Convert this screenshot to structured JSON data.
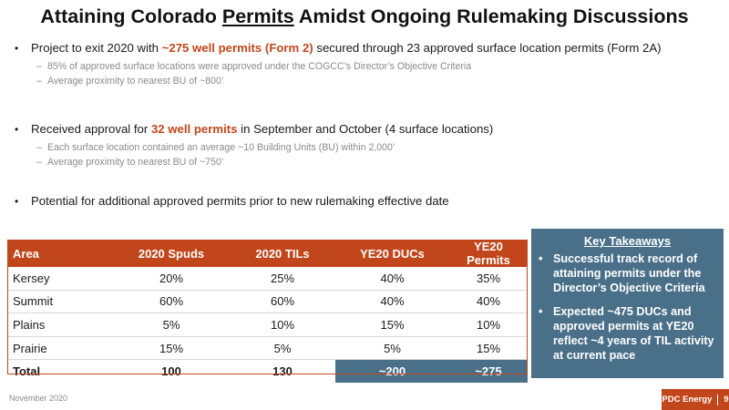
{
  "title": {
    "part1": "Attaining Colorado ",
    "underlined": "Permits",
    "part2": " Amidst Ongoing Rulemaking Discussions"
  },
  "bullets": [
    {
      "pre": "Project to exit 2020 with ",
      "highlight": "~275 well permits (Form 2)",
      "post": " secured through 23 approved surface location permits (Form 2A)",
      "subs": [
        "85% of approved surface locations were approved under the COGCC’s Director’s Objective Criteria",
        "Average proximity to nearest BU of ~800’"
      ]
    },
    {
      "pre": "Received approval for ",
      "highlight": "32 well permits",
      "post": " in September and October (4 surface locations)",
      "subs": [
        "Each surface location contained an average ~10 Building Units (BU) within 2,000’",
        "Average proximity to nearest BU of ~750’"
      ]
    },
    {
      "pre": "Potential for additional approved permits prior to new rulemaking effective date",
      "highlight": "",
      "post": "",
      "subs": []
    }
  ],
  "table": {
    "headers": [
      "Area",
      "2020 Spuds",
      "2020 TILs",
      "YE20 DUCs",
      "YE20 Permits"
    ],
    "rows": [
      [
        "Kersey",
        "20%",
        "25%",
        "40%",
        "35%"
      ],
      [
        "Summit",
        "60%",
        "60%",
        "40%",
        "40%"
      ],
      [
        "Plains",
        "5%",
        "10%",
        "15%",
        "10%"
      ],
      [
        "Prairie",
        "15%",
        "5%",
        "5%",
        "15%"
      ],
      [
        "Total",
        "100",
        "130",
        "~200",
        "~275"
      ]
    ]
  },
  "takeaways": {
    "header": "Key Takeaways",
    "items": [
      "Successful track record of attaining permits under the Director’s Objective Criteria",
      "Expected ~475 DUCs and approved permits at YE20 reflect ~4 years of TIL activity at current pace"
    ]
  },
  "footer": {
    "date": "November 2020",
    "brand": "PDC Energy",
    "page": "9"
  },
  "colors": {
    "accent_orange": "#c2461b",
    "takeaway_blue": "#4a7089"
  }
}
